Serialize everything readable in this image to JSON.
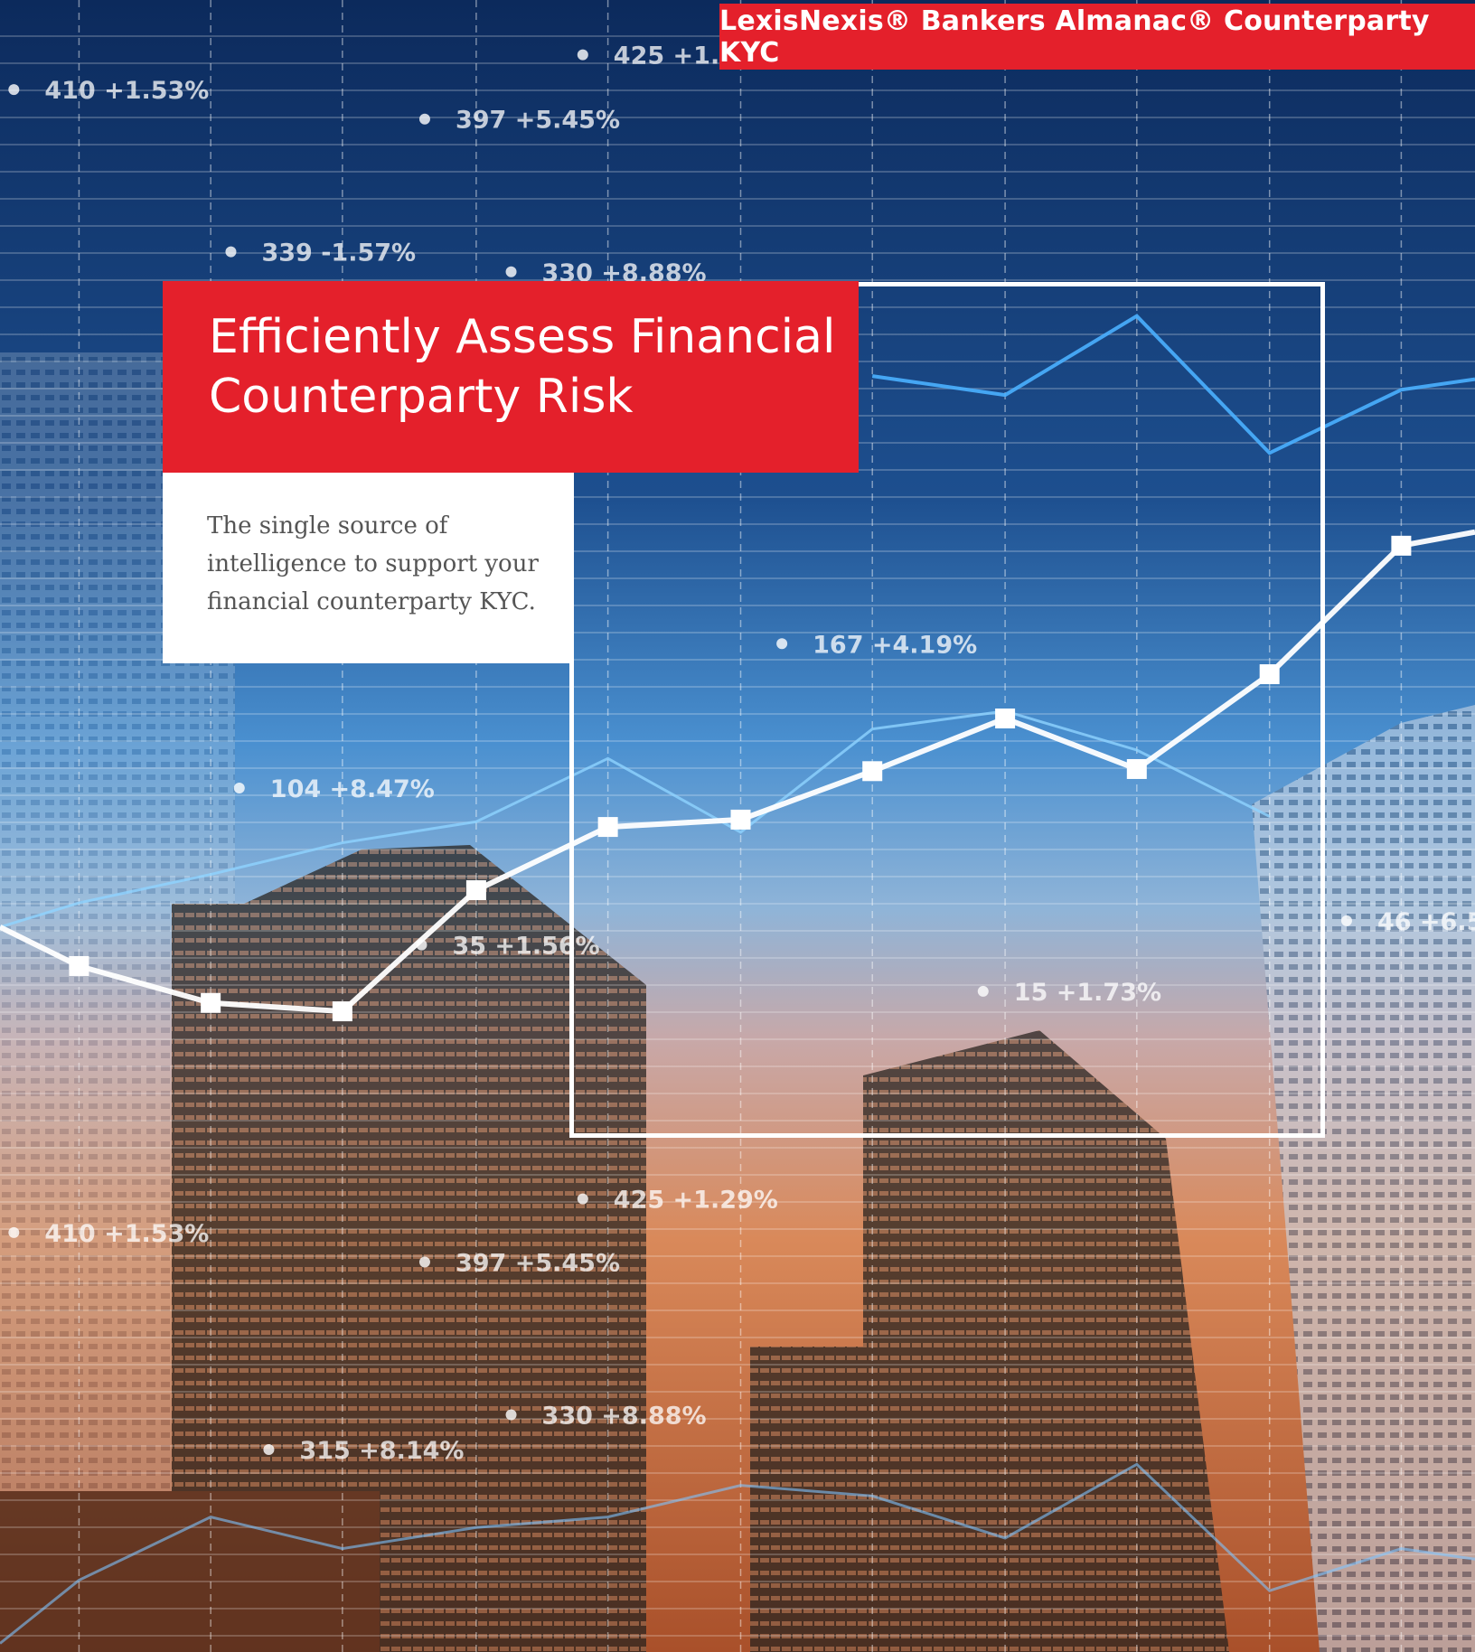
{
  "header": {
    "brand": "LexisNexis® Bankers Almanac® Counterparty KYC"
  },
  "hero": {
    "title_lines": [
      "Efficiently Assess Financial",
      "Counterparty Risk"
    ],
    "subtitle_lines": [
      "The single source of",
      "intelligence to support your",
      "financial counterparty KYC."
    ]
  },
  "background_labels": [
    "425 +1.",
    "410 +1.53%",
    "397 +5.45%",
    "339 -1.57%",
    "330 +8.88%",
    "167 +4.19%",
    "104 +8.47%",
    "35 +1.56%",
    "15 +1.73%",
    "46 +6.5",
    "425 +1.29%",
    "410 +1.53%",
    "397 +5.45%",
    "330 +8.88%",
    "315 +8.14%"
  ]
}
